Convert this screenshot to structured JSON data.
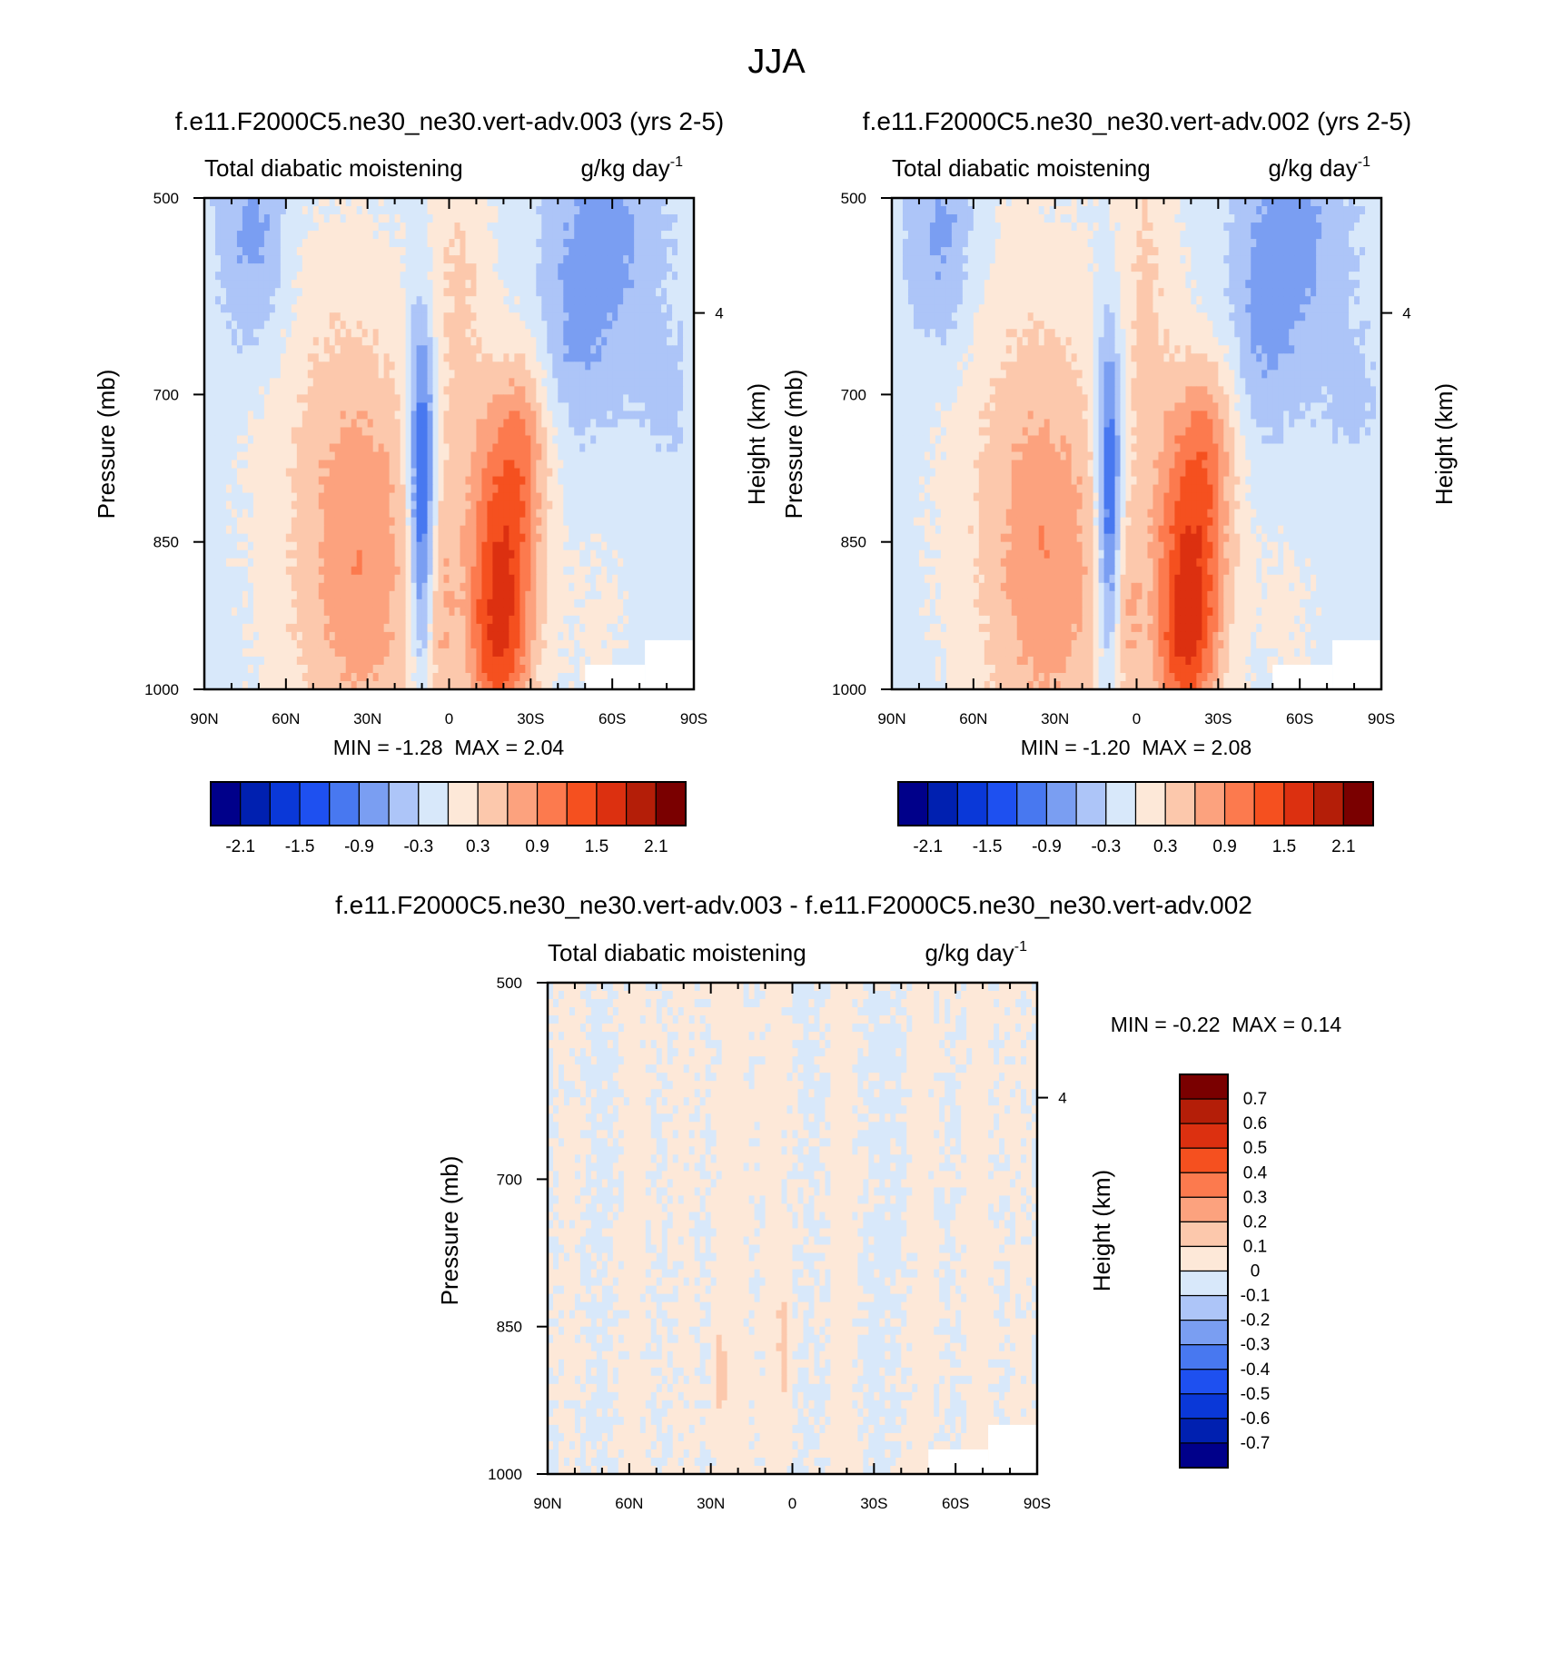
{
  "figure_title": "JJA",
  "chart_data": [
    {
      "type": "heatmap",
      "title": "f.e11.F2000C5.ne30_ne30.vert-adv.003 (yrs 2-5)",
      "left_subtitle": "Total diabatic moistening",
      "units_base": "g/kg day",
      "units_exp": "-1",
      "ylabel": "Pressure (mb)",
      "right_label": "Height (km)",
      "x_tick_labels": [
        "90N",
        "60N",
        "30N",
        "0",
        "30S",
        "60S",
        "90S"
      ],
      "y_tick_labels": [
        "500",
        "700",
        "850",
        "1000"
      ],
      "y_ticks": [
        500,
        700,
        850,
        1000
      ],
      "ylim": [
        500,
        1000
      ],
      "right_ticks": [
        {
          "value_km": 4,
          "pressure": 617,
          "label": "4"
        }
      ],
      "min_label": "MIN = ",
      "min_value": "-1.28",
      "max_label": "MAX = ",
      "max_value": "2.04",
      "colorbar_labels": [
        "-2.1",
        "-1.5",
        "-0.9",
        "-0.3",
        "0.3",
        "0.9",
        "1.5",
        "2.1"
      ],
      "features": [
        {
          "lat": 72,
          "p": 580,
          "sx": 9,
          "sp": 70,
          "v": -0.45
        },
        {
          "lat": 72,
          "p": 510,
          "sx": 9,
          "sp": 40,
          "v": -0.3
        },
        {
          "lat": -58,
          "p": 540,
          "sx": 14,
          "sp": 110,
          "v": -0.55
        },
        {
          "lat": -45,
          "p": 640,
          "sx": 8,
          "sp": 80,
          "v": -0.3
        },
        {
          "lat": -80,
          "p": 700,
          "sx": 6,
          "sp": 40,
          "v": -0.25
        },
        {
          "lat": 10,
          "p": 760,
          "sx": 3.5,
          "sp": 110,
          "v": -1.3
        },
        {
          "lat": 10,
          "p": 900,
          "sx": 2.5,
          "sp": 90,
          "v": -0.5
        },
        {
          "lat": -3,
          "p": 580,
          "sx": 9,
          "sp": 150,
          "v": 0.45
        },
        {
          "lat": -20,
          "p": 860,
          "sx": 10,
          "sp": 110,
          "v": 1.5
        },
        {
          "lat": -17,
          "p": 970,
          "sx": 8,
          "sp": 60,
          "v": 0.75
        },
        {
          "lat": -28,
          "p": 740,
          "sx": 7,
          "sp": 60,
          "v": 0.5
        },
        {
          "lat": 30,
          "p": 880,
          "sx": 16,
          "sp": 150,
          "v": 0.7
        },
        {
          "lat": 45,
          "p": 800,
          "sx": 22,
          "sp": 220,
          "v": 0.4
        },
        {
          "lat": 3,
          "p": 930,
          "sx": 4,
          "sp": 80,
          "v": 0.45
        },
        {
          "lat": -55,
          "p": 930,
          "sx": 10,
          "sp": 100,
          "v": 0.2
        }
      ],
      "noise_seed": 7
    },
    {
      "type": "heatmap",
      "title": "f.e11.F2000C5.ne30_ne30.vert-adv.002 (yrs 2-5)",
      "left_subtitle": "Total diabatic moistening",
      "units_base": "g/kg day",
      "units_exp": "-1",
      "ylabel": "Pressure (mb)",
      "right_label": "Height (km)",
      "x_tick_labels": [
        "90N",
        "60N",
        "30N",
        "0",
        "30S",
        "60S",
        "90S"
      ],
      "y_tick_labels": [
        "500",
        "700",
        "850",
        "1000"
      ],
      "y_ticks": [
        500,
        700,
        850,
        1000
      ],
      "ylim": [
        500,
        1000
      ],
      "right_ticks": [
        {
          "value_km": 4,
          "pressure": 617,
          "label": "4"
        }
      ],
      "min_label": "MIN = ",
      "min_value": "-1.20",
      "max_label": "MAX = ",
      "max_value": "2.08",
      "colorbar_labels": [
        "-2.1",
        "-1.5",
        "-0.9",
        "-0.3",
        "0.3",
        "0.9",
        "1.5",
        "2.1"
      ],
      "features": [
        {
          "lat": 72,
          "p": 580,
          "sx": 9,
          "sp": 70,
          "v": -0.45
        },
        {
          "lat": 72,
          "p": 510,
          "sx": 9,
          "sp": 40,
          "v": -0.3
        },
        {
          "lat": -58,
          "p": 540,
          "sx": 14,
          "sp": 110,
          "v": -0.55
        },
        {
          "lat": -45,
          "p": 640,
          "sx": 8,
          "sp": 80,
          "v": -0.3
        },
        {
          "lat": -80,
          "p": 700,
          "sx": 6,
          "sp": 40,
          "v": -0.25
        },
        {
          "lat": 10,
          "p": 760,
          "sx": 3.5,
          "sp": 110,
          "v": -1.2
        },
        {
          "lat": 10,
          "p": 900,
          "sx": 2.5,
          "sp": 90,
          "v": -0.5
        },
        {
          "lat": -3,
          "p": 580,
          "sx": 9,
          "sp": 150,
          "v": 0.45
        },
        {
          "lat": -20,
          "p": 860,
          "sx": 10,
          "sp": 110,
          "v": 1.55
        },
        {
          "lat": -17,
          "p": 970,
          "sx": 8,
          "sp": 60,
          "v": 0.75
        },
        {
          "lat": -28,
          "p": 740,
          "sx": 7,
          "sp": 60,
          "v": 0.5
        },
        {
          "lat": 30,
          "p": 880,
          "sx": 16,
          "sp": 150,
          "v": 0.7
        },
        {
          "lat": 45,
          "p": 800,
          "sx": 22,
          "sp": 220,
          "v": 0.4
        },
        {
          "lat": 3,
          "p": 930,
          "sx": 4,
          "sp": 80,
          "v": 0.45
        },
        {
          "lat": -55,
          "p": 930,
          "sx": 10,
          "sp": 100,
          "v": 0.2
        }
      ],
      "noise_seed": 11
    },
    {
      "type": "heatmap",
      "title": "f.e11.F2000C5.ne30_ne30.vert-adv.003 - f.e11.F2000C5.ne30_ne30.vert-adv.002",
      "left_subtitle": "Total diabatic moistening",
      "units_base": "g/kg day",
      "units_exp": "-1",
      "ylabel": "Pressure (mb)",
      "right_label": "Height (km)",
      "x_tick_labels": [
        "90N",
        "60N",
        "30N",
        "0",
        "30S",
        "60S",
        "90S"
      ],
      "y_tick_labels": [
        "500",
        "700",
        "850",
        "1000"
      ],
      "y_ticks": [
        500,
        700,
        850,
        1000
      ],
      "ylim": [
        500,
        1000
      ],
      "right_ticks": [
        {
          "value_km": 4,
          "pressure": 617,
          "label": "4"
        }
      ],
      "min_label": "MIN = ",
      "min_value": "-0.22",
      "max_label": "MAX = ",
      "max_value": "0.14",
      "colorbar_labels": [
        "0.7",
        "0.6",
        "0.5",
        "0.4",
        "0.3",
        "0.2",
        "0.1",
        "0",
        "-0.1",
        "-0.2",
        "-0.3",
        "-0.4",
        "-0.5",
        "-0.6",
        "-0.7"
      ],
      "stripes": [
        {
          "lat": 82,
          "v": 0.04
        },
        {
          "lat": 58,
          "v": 0.05
        },
        {
          "lat": 40,
          "v": 0.04
        },
        {
          "lat": 22,
          "v": 0.06
        },
        {
          "lat": 6,
          "v": 0.05
        },
        {
          "lat": -18,
          "v": 0.06
        },
        {
          "lat": -48,
          "v": 0.05
        },
        {
          "lat": -68,
          "v": 0.05
        },
        {
          "lat": -84,
          "v": 0.04
        }
      ],
      "spots": [
        {
          "lat": 26,
          "p": 900,
          "v": 0.13
        },
        {
          "lat": 3,
          "p": 870,
          "v": 0.12
        }
      ],
      "noise_seed": 3
    }
  ],
  "colormap": [
    "#00008a",
    "#0020b0",
    "#0a38d8",
    "#1e50f0",
    "#4878f0",
    "#7a9ef2",
    "#adc5f8",
    "#d8e8fa",
    "#fde8d8",
    "#fcc8ac",
    "#fca27e",
    "#fc7a4e",
    "#f5501f",
    "#dc3010",
    "#b41e08",
    "#7a0000"
  ]
}
